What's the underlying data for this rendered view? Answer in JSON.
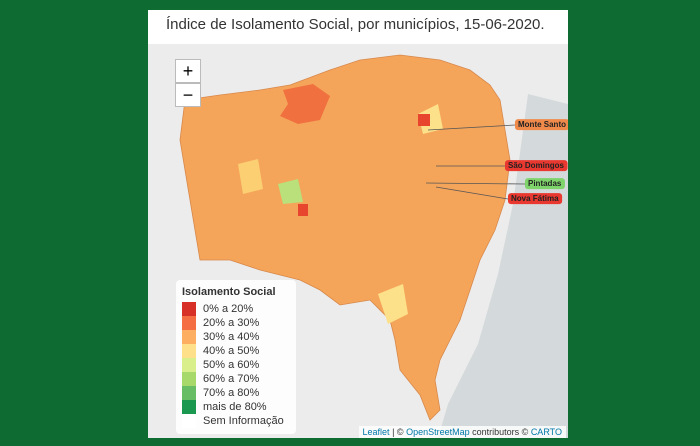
{
  "title": "Índice de Isolamento Social, por municípios, 15-06-2020.",
  "zoom": {
    "in": "+",
    "out": "−"
  },
  "places": [
    {
      "label": "Monte Santo",
      "color": "#f08a4b"
    },
    {
      "label": "São Domingos",
      "color": "#e8382f"
    },
    {
      "label": "Pintadas",
      "color": "#7ed36b"
    },
    {
      "label": "Nova Fátima",
      "color": "#e8382f"
    }
  ],
  "legend": {
    "title": "Isolamento Social",
    "items": [
      {
        "label": "0% a 20%",
        "color": "#d73027"
      },
      {
        "label": "20% a 30%",
        "color": "#f46d43"
      },
      {
        "label": "30% a 40%",
        "color": "#fdae61"
      },
      {
        "label": "40% a 50%",
        "color": "#fee08b"
      },
      {
        "label": "50% a 60%",
        "color": "#d9ef8b"
      },
      {
        "label": "60% a 70%",
        "color": "#a6d96a"
      },
      {
        "label": "70% a 80%",
        "color": "#66bd63"
      },
      {
        "label": "mais de 80%",
        "color": "#1a9850"
      },
      {
        "label": "Sem Informação",
        "color": "#ffffff"
      }
    ]
  },
  "attribution": {
    "leaflet": "Leaflet",
    "sep": "| ©",
    "osm": "OpenStreetMap",
    "contrib": "contributors ©",
    "carto": "CARTO"
  }
}
